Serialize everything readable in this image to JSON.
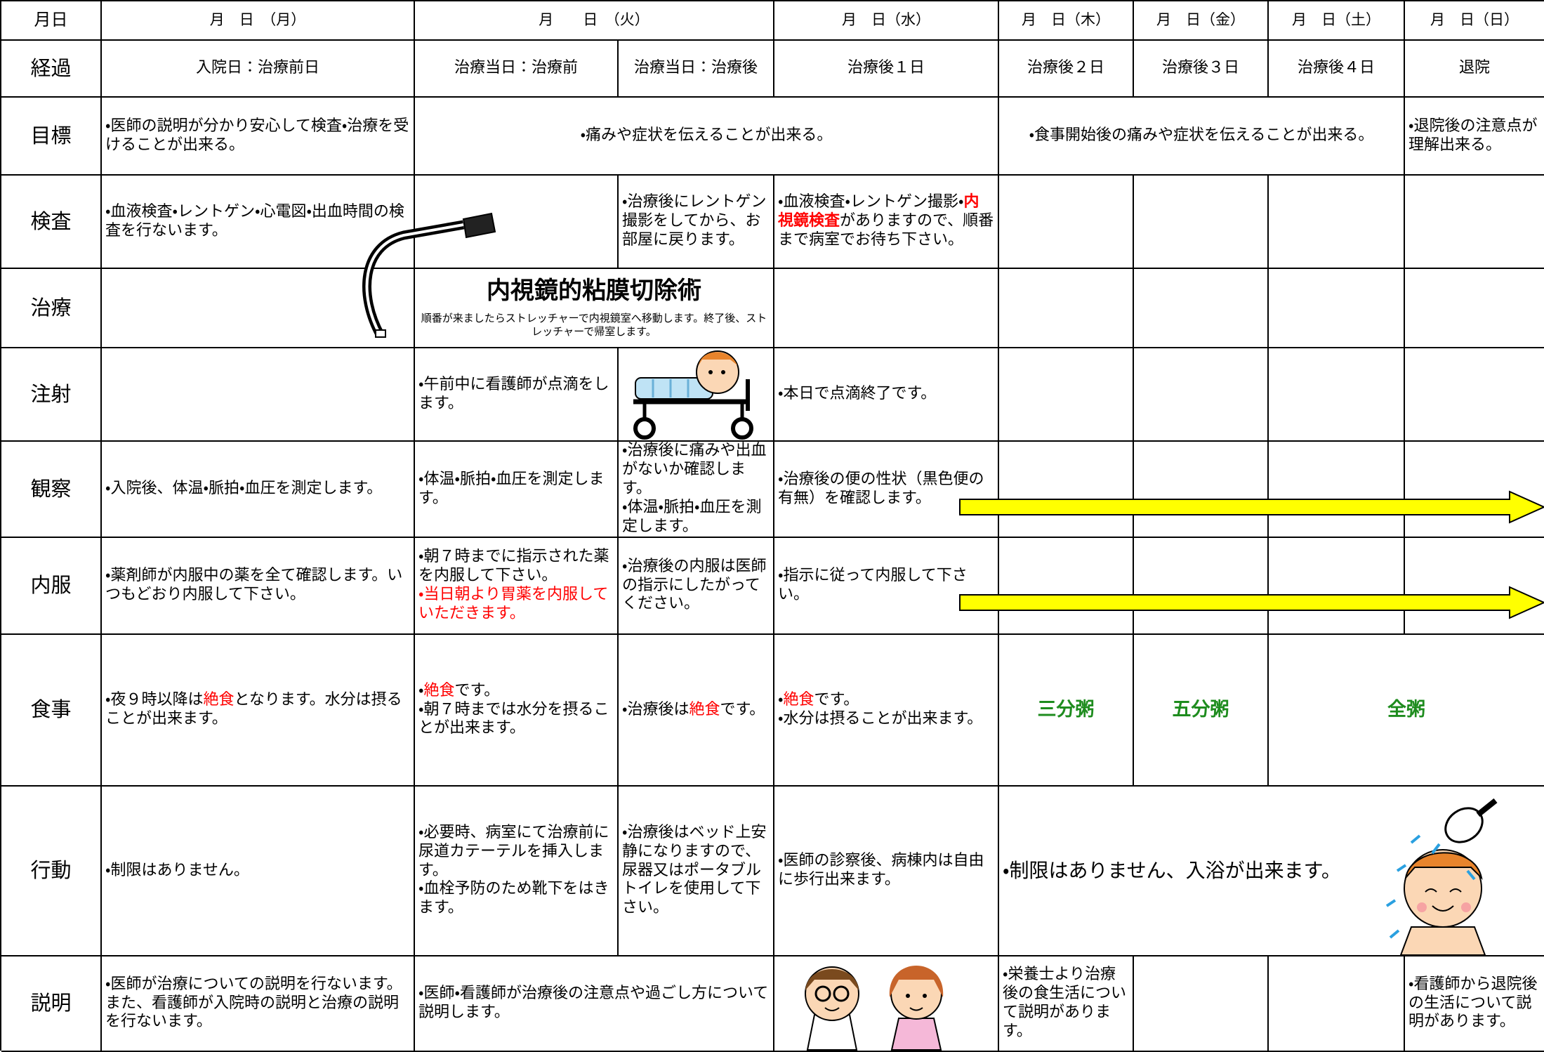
{
  "header": [
    "月日",
    "月　日　（月）",
    "月　　日　（火）",
    "月　日（水）",
    "月　日（木）",
    "月　日（金）",
    "月　日（土）",
    "月　日（日）"
  ],
  "rows": [
    {
      "label": "経過",
      "cells": [
        [
          "入院日：治療前日"
        ],
        [
          "治療当日：治療前"
        ],
        [
          "治療当日：治療後"
        ],
        [
          "治療後１日"
        ],
        [
          "治療後２日"
        ],
        [
          "治療後３日"
        ],
        [
          "治療後４日"
        ],
        [
          "退院"
        ]
      ]
    },
    {
      "label": "目標",
      "cells": [
        [
          "・医師の説明が分かり安心して検査・治療を受けることが出来る。"
        ],
        [
          "・痛みや症状を伝えることが出来る。"
        ],
        [
          "・食事開始後の痛みや症状を伝えることが出来る。"
        ],
        [
          "・退院後の注意点が理解出来る。"
        ]
      ]
    },
    {
      "label": "検査",
      "cells": [
        [
          "・血液検査・レントゲン・心電図・出血時間の検査を行ないます。"
        ],
        [],
        [
          "・治療後にレントゲン撮影をしてから、お部屋に戻ります。"
        ],
        [
          [
            "・血液検査・レントゲン撮影・",
            {
              "text": "内視鏡検査",
              "color": "#ff0000",
              "bold": true
            },
            "がありますので、順番まで病室でお待ち下さい。"
          ]
        ],
        [],
        [],
        [],
        []
      ]
    },
    {
      "label": "治療",
      "cells": [
        [],
        {
          "title": "内視鏡的粘膜切除術",
          "note": "順番が来ましたらストレッチャーで内視鏡室へ移動します。終了後、ストレッチャーで帰室します。"
        },
        [],
        [],
        [],
        [],
        []
      ]
    },
    {
      "label": "注射",
      "cells": [
        [],
        [
          "・午前中に看護師が点滴をします。"
        ],
        [],
        [
          "・本日で点滴終了です。"
        ],
        [],
        [],
        [],
        []
      ]
    },
    {
      "label": "観察",
      "cells": [
        [
          "・入院後、体温・脈拍・血圧を測定します。"
        ],
        [
          "・体温・脈拍・血圧を測定します。"
        ],
        [
          "・治療後に痛みや出血がないか確認します。",
          "・体温・脈拍・血圧を測定します。"
        ],
        [
          "・治療後の便の性状（黒色便の有無）を確認します。"
        ],
        [],
        [],
        [],
        []
      ]
    },
    {
      "label": "内服",
      "cells": [
        [
          "・薬剤師が内服中の薬を全て確認します。いつもどおり内服して下さい。"
        ],
        [
          "・朝７時までに指示された薬を内服して下さい。",
          [
            {
              "text": "・当日朝より胃薬を内服していただきます。",
              "color": "#ff0000"
            }
          ]
        ],
        [
          "・治療後の内服は医師の指示にしたがってください。"
        ],
        [
          "・指示に従って内服して下さい。"
        ],
        [],
        [],
        [],
        []
      ]
    },
    {
      "label": "食事",
      "cells": [
        [
          [
            "・夜９時以降は",
            {
              "text": "絶食",
              "color": "#ff0000"
            },
            "となります。水分は摂ることが出来ます。"
          ]
        ],
        [
          [
            "・",
            {
              "text": "絶食",
              "color": "#ff0000"
            },
            "です。"
          ],
          "・朝７時までは水分を摂ることが出来ます。"
        ],
        [
          [
            "・治療後は",
            {
              "text": "絶食",
              "color": "#ff0000"
            },
            "です。"
          ]
        ],
        [
          [
            "・",
            {
              "text": "絶食",
              "color": "#ff0000"
            },
            "です。"
          ],
          "・水分は摂ることが出来ます。"
        ],
        [
          [
            {
              "text": "三分粥",
              "color": "#1e8c1e",
              "bold": true
            }
          ]
        ],
        [
          [
            {
              "text": "五分粥",
              "color": "#1e8c1e",
              "bold": true
            }
          ]
        ],
        [
          [
            {
              "text": "全粥",
              "color": "#1e8c1e",
              "bold": true
            }
          ]
        ]
      ]
    },
    {
      "label": "行動",
      "cells": [
        [
          "・制限はありません。"
        ],
        [
          "・必要時、病室にて治療前に尿道カテーテルを挿入します。",
          "・血栓予防のため靴下をはきます。"
        ],
        [
          "・治療後はベッド上安静になりますので、尿器又はポータブルトイレを使用して下さい。"
        ],
        [
          "・医師の診察後、病棟内は自由に歩行出来ます。"
        ],
        [
          "・制限はありません、入浴が出来ます。"
        ]
      ]
    },
    {
      "label": "説明",
      "cells": [
        [
          "・医師が治療についての説明を行ないます。また、看護師が入院時の説明と治療の説明を行ないます。"
        ],
        [
          "・医師・看護師が治療後の注意点や過ごし方について説明します。"
        ],
        [],
        [
          "・栄養士より治療後の食生活について説明があります。"
        ],
        [],
        [],
        [
          "・看護師から退院後の生活について説明があります。"
        ]
      ]
    }
  ]
}
